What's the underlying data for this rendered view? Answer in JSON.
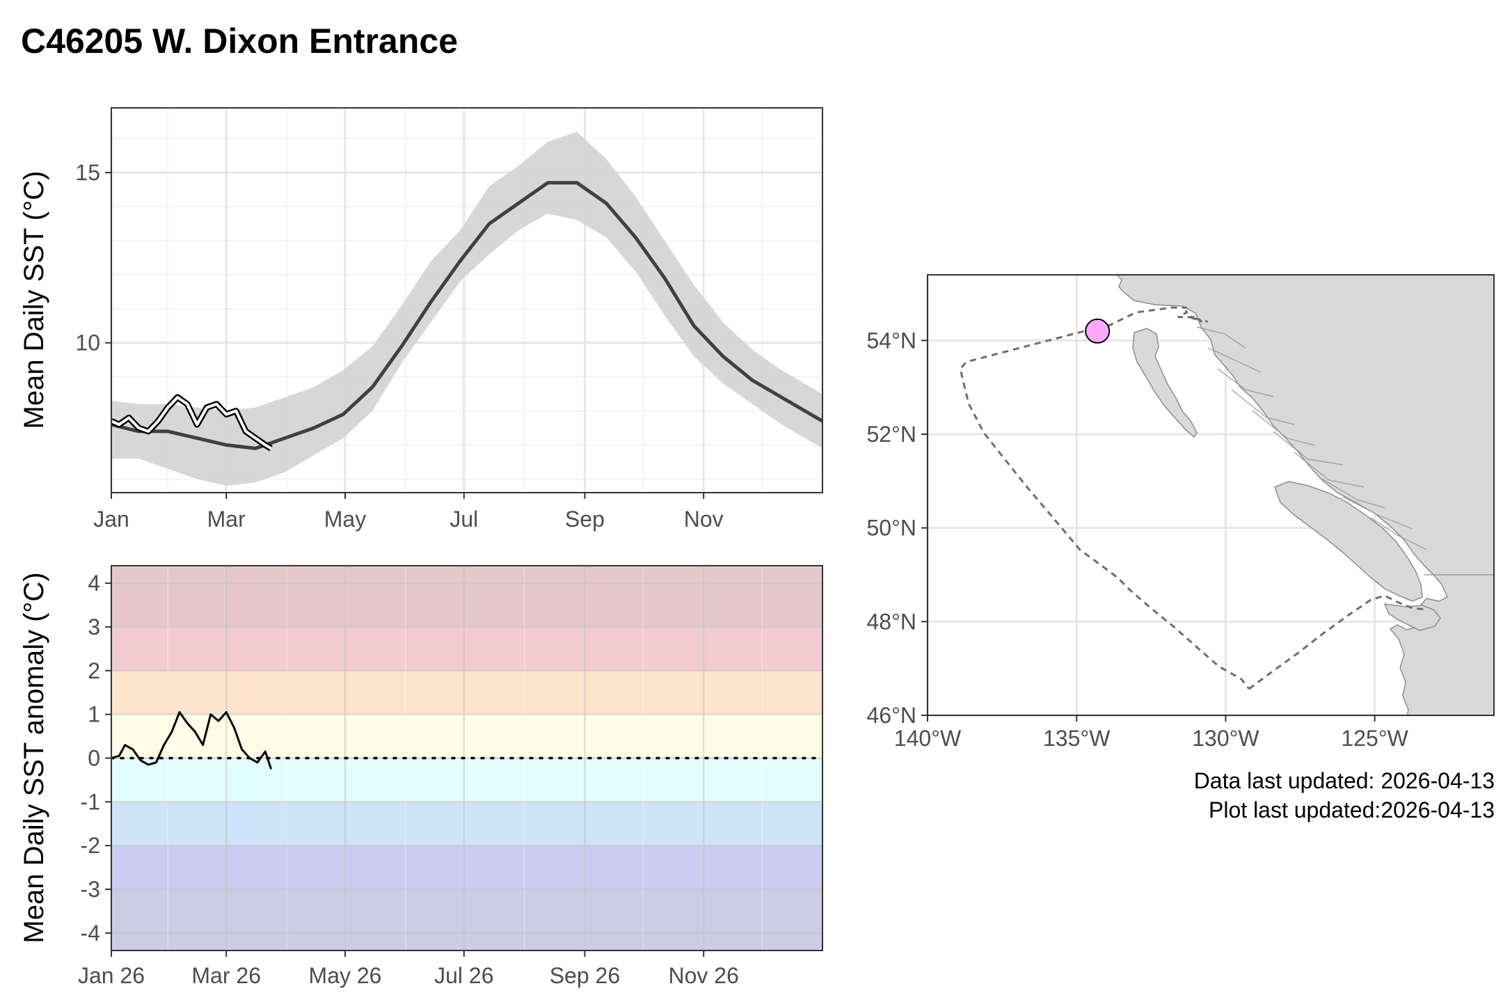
{
  "title": "C46205 W. Dixon Entrance",
  "update_notes": {
    "data_updated": "Data last updated: 2026-04-13",
    "plot_updated": "Plot last updated:2026-04-13"
  },
  "colors": {
    "climatology_line": "#404040",
    "climatology_band": "#d3d3d3",
    "current_line": "#000000",
    "station_marker": "#ffaaff",
    "land": "#d9d9d9",
    "coast": "#8c8c8c",
    "boundary": "#6e6e6e",
    "anomaly_bands": [
      "#e6c8cc",
      "#f2cccf",
      "#fde4cd",
      "#fffde6",
      "#e2fdfd",
      "#cde4f9",
      "#ccccf2",
      "#cccce6"
    ]
  },
  "chart_data": [
    {
      "type": "line",
      "name": "sst-climatology",
      "ylabel": "Mean Daily SST (°C)",
      "xlabel": "",
      "x_ticks": [
        "Jan",
        "Mar",
        "May",
        "Jul",
        "Sep",
        "Nov"
      ],
      "y_ticks": [
        10,
        15
      ],
      "xlim": [
        1,
        366
      ],
      "ylim": [
        5.6,
        16.9
      ],
      "x_tick_days": [
        1,
        60,
        121,
        182,
        244,
        305
      ],
      "climatology": {
        "x": [
          1,
          15,
          30,
          45,
          60,
          75,
          90,
          105,
          120,
          135,
          150,
          165,
          180,
          195,
          210,
          225,
          240,
          255,
          270,
          285,
          300,
          315,
          330,
          345,
          366
        ],
        "mean": [
          7.6,
          7.4,
          7.4,
          7.2,
          7.0,
          6.9,
          7.2,
          7.5,
          7.9,
          8.7,
          9.9,
          11.2,
          12.4,
          13.5,
          14.1,
          14.7,
          14.7,
          14.1,
          13.1,
          11.9,
          10.5,
          9.6,
          8.9,
          8.4,
          7.7
        ],
        "lower": [
          6.6,
          6.6,
          6.3,
          6.0,
          5.8,
          5.9,
          6.2,
          6.7,
          7.2,
          8.0,
          9.4,
          10.6,
          11.8,
          12.6,
          13.3,
          13.8,
          13.6,
          13.1,
          12.1,
          10.8,
          9.6,
          8.8,
          8.2,
          7.6,
          6.9
        ],
        "upper": [
          8.3,
          8.2,
          8.2,
          8.1,
          8.0,
          8.1,
          8.4,
          8.7,
          9.2,
          9.9,
          11.1,
          12.4,
          13.3,
          14.6,
          15.2,
          15.9,
          16.2,
          15.4,
          14.3,
          13.0,
          11.7,
          10.6,
          9.8,
          9.2,
          8.5
        ]
      },
      "current_year": {
        "x": [
          1,
          5,
          10,
          15,
          20,
          25,
          30,
          35,
          40,
          45,
          50,
          55,
          60,
          65,
          70,
          75,
          80,
          83
        ],
        "y": [
          7.7,
          7.6,
          7.8,
          7.5,
          7.4,
          7.7,
          8.1,
          8.4,
          8.2,
          7.6,
          8.1,
          8.2,
          7.9,
          8.0,
          7.4,
          7.2,
          7.0,
          6.9
        ]
      }
    },
    {
      "type": "line",
      "name": "sst-anomaly",
      "ylabel": "Mean Daily SST anomaly (°C)",
      "xlabel": "",
      "x_ticks": [
        "Jan 26",
        "Mar 26",
        "May 26",
        "Jul 26",
        "Sep 26",
        "Nov 26"
      ],
      "x_tick_days": [
        1,
        60,
        121,
        182,
        244,
        305
      ],
      "y_ticks": [
        -4,
        -3,
        -2,
        -1,
        0,
        1,
        2,
        3,
        4
      ],
      "xlim": [
        1,
        366
      ],
      "ylim": [
        -4.4,
        4.4
      ],
      "band_edges": [
        4.4,
        3,
        2,
        1,
        0,
        -1,
        -2,
        -3,
        -4.4
      ],
      "reference_line": 0,
      "anomaly": {
        "x": [
          1,
          5,
          8,
          12,
          16,
          20,
          24,
          28,
          32,
          36,
          40,
          44,
          48,
          52,
          56,
          60,
          64,
          68,
          72,
          76,
          80,
          83
        ],
        "y": [
          0.0,
          0.05,
          0.3,
          0.2,
          -0.05,
          -0.15,
          -0.1,
          0.3,
          0.6,
          1.05,
          0.8,
          0.6,
          0.3,
          1.0,
          0.85,
          1.05,
          0.7,
          0.2,
          0.0,
          -0.1,
          0.15,
          -0.25
        ]
      }
    },
    {
      "type": "map",
      "name": "station-map",
      "x_ticks": [
        "140°W",
        "135°W",
        "130°W",
        "125°W"
      ],
      "x_tick_values": [
        -140,
        -135,
        -130,
        -125
      ],
      "y_ticks": [
        "46°N",
        "48°N",
        "50°N",
        "52°N",
        "54°N"
      ],
      "y_tick_values": [
        46,
        48,
        50,
        52,
        54
      ],
      "xlim": [
        -140,
        -121
      ],
      "ylim": [
        46,
        55.4
      ],
      "station": {
        "lon": -134.3,
        "lat": 54.2
      },
      "region_boundary": {
        "lon": [
          -134.3,
          -133.0,
          -131.8,
          -131.3,
          -131.4,
          -131.3,
          -131.6,
          -131.0,
          -130.8,
          -131.2,
          -130.6
        ],
        "lat": [
          54.2,
          54.6,
          54.7,
          54.7,
          54.7,
          54.6,
          54.5,
          54.5,
          54.4,
          54.5,
          54.4
        ]
      }
    }
  ]
}
